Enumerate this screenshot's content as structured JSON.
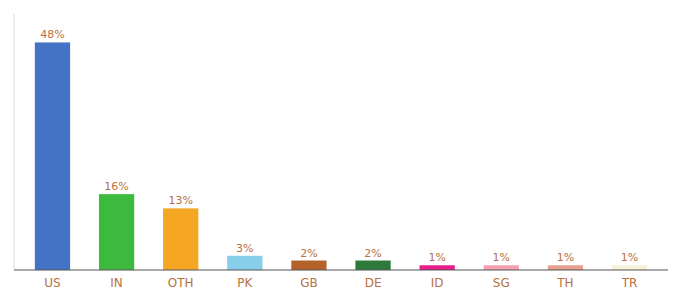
{
  "chart_data": {
    "type": "bar",
    "categories": [
      "US",
      "IN",
      "OTH",
      "PK",
      "GB",
      "DE",
      "ID",
      "SG",
      "TH",
      "TR"
    ],
    "values": [
      48,
      16,
      13,
      3,
      2,
      2,
      1,
      1,
      1,
      1
    ],
    "value_labels": [
      "48%",
      "16%",
      "13%",
      "3%",
      "2%",
      "2%",
      "1%",
      "1%",
      "1%",
      "1%"
    ],
    "colors": [
      "#4472c4",
      "#3dba3d",
      "#f5a623",
      "#87ceeb",
      "#b5622a",
      "#2d7a3a",
      "#e91e8c",
      "#f4a0b0",
      "#e8a090",
      "#f5f0d8"
    ],
    "ylim": [
      0,
      54
    ],
    "grid": false,
    "data_labels": true,
    "tick_labels": "x"
  }
}
